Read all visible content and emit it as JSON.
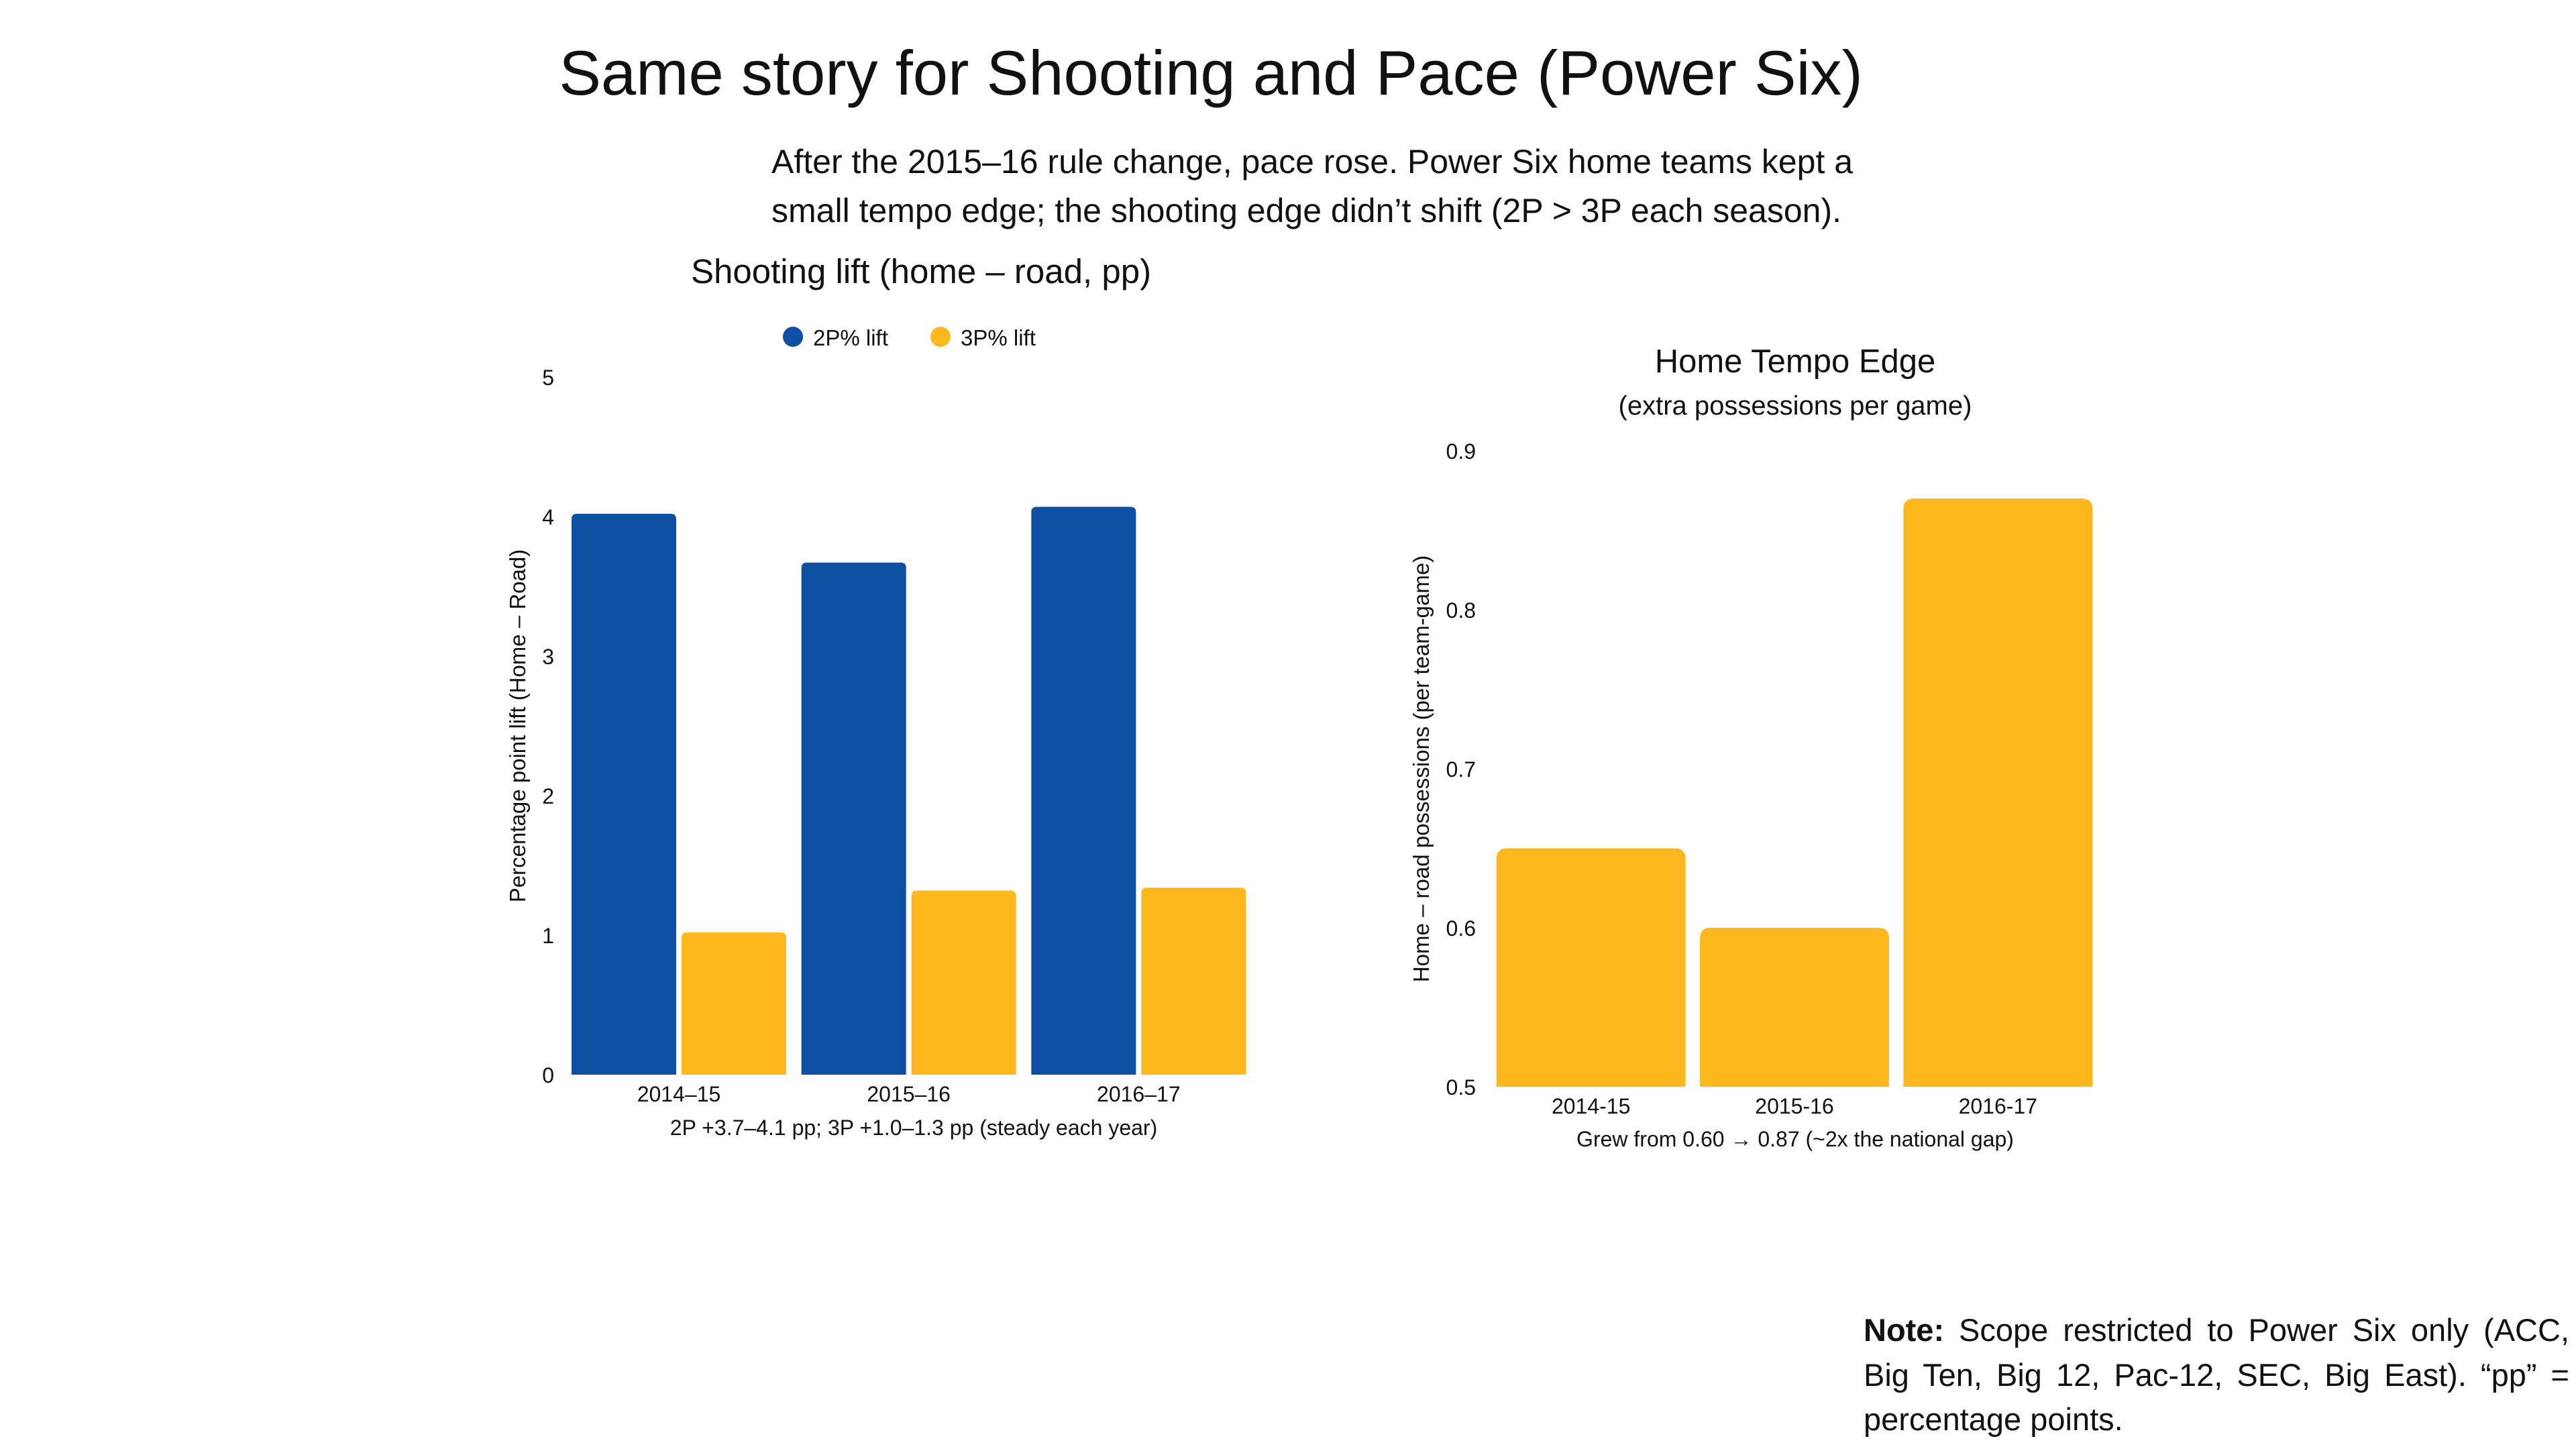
{
  "title": "Same story for Shooting and Pace (Power Six)",
  "subtitle": "After the 2015–16 rule change, pace rose. Power Six home teams kept a small tempo edge; the shooting edge didn’t shift (2P > 3P each season).",
  "note": {
    "label": "Note:",
    "text": "Scope restricted to Power Six only (ACC, Big Ten, Big 12, Pac-12, SEC, Big East). “pp” = percentage points."
  },
  "colors": {
    "blue": "#0D4FA3",
    "gold": "#FDB81E"
  },
  "chart_data": [
    {
      "type": "bar",
      "title": "Shooting lift (home – road, pp)",
      "categories": [
        "2014–15",
        "2015–16",
        "2016–17"
      ],
      "series": [
        {
          "name": "2P% lift",
          "values": [
            4.02,
            3.67,
            4.07
          ],
          "color": "#0D4FA3"
        },
        {
          "name": "3P% lift",
          "values": [
            1.02,
            1.32,
            1.34
          ],
          "color": "#FDB81E"
        }
      ],
      "ylabel": "Percentage point lift (Home – Road)",
      "xlabel": "2P +3.7–4.1 pp; 3P +1.0–1.3 pp (steady each year)",
      "ylim": [
        0,
        5
      ],
      "yticks": [
        0,
        1,
        2,
        3,
        4,
        5
      ],
      "legend": "top",
      "grid": false
    },
    {
      "type": "bar",
      "title": "Home Tempo Edge",
      "subtitle": "(extra possessions per game)",
      "categories": [
        "2014-15",
        "2015-16",
        "2016-17"
      ],
      "values": [
        0.65,
        0.6,
        0.87
      ],
      "color": "#FDB81E",
      "ylabel": "Home – road possessions (per team-game)",
      "xlabel": "Grew from 0.60 → 0.87 (~2x the national gap)",
      "ylim": [
        0.5,
        0.9
      ],
      "yticks": [
        0.5,
        0.6,
        0.7,
        0.8,
        0.9
      ],
      "grid": false
    }
  ]
}
